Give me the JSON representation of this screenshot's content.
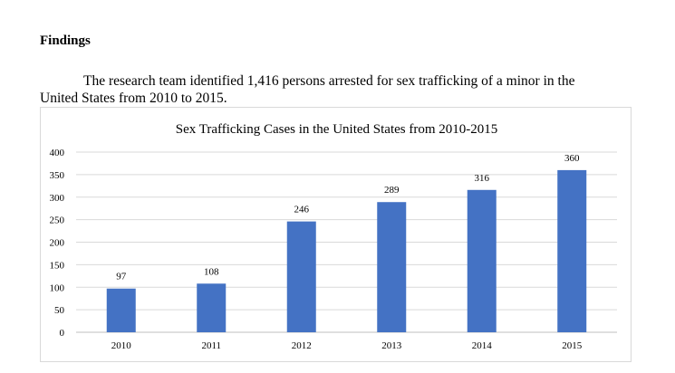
{
  "document": {
    "heading": "Findings",
    "paragraph_line1": "The research team identified 1,416 persons arrested for sex trafficking of a minor in the",
    "paragraph_line2": "United States from 2010 to 2015."
  },
  "colors": {
    "bar": "#4472C4",
    "gridline": "#d9d9d9",
    "axis": "#bfbfbf"
  },
  "chart_data": {
    "type": "bar",
    "title": "Sex Trafficking Cases in the United States from 2010-2015",
    "categories": [
      "2010",
      "2011",
      "2012",
      "2013",
      "2014",
      "2015"
    ],
    "values": [
      97,
      108,
      246,
      289,
      316,
      360
    ],
    "data_labels": [
      "97",
      "108",
      "246",
      "289",
      "316",
      "360"
    ],
    "y_ticks": [
      "0",
      "50",
      "100",
      "150",
      "200",
      "250",
      "300",
      "350",
      "400"
    ],
    "ylim": [
      0,
      400
    ],
    "xlabel": "",
    "ylabel": "",
    "grid": true,
    "legend": "none"
  }
}
